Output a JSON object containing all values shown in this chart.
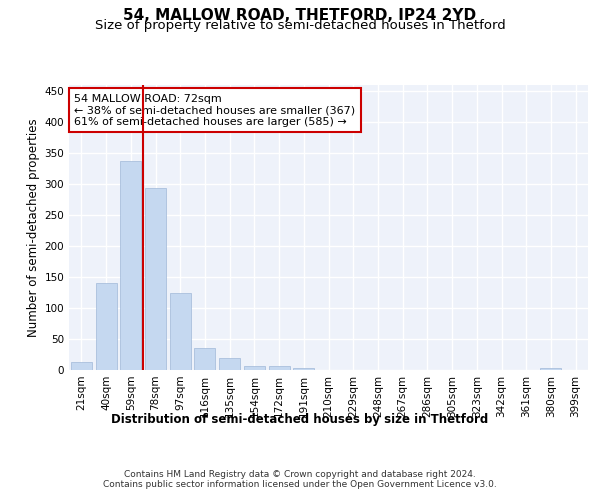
{
  "title": "54, MALLOW ROAD, THETFORD, IP24 2YD",
  "subtitle": "Size of property relative to semi-detached houses in Thetford",
  "xlabel": "Distribution of semi-detached houses by size in Thetford",
  "ylabel": "Number of semi-detached properties",
  "categories": [
    "21sqm",
    "40sqm",
    "59sqm",
    "78sqm",
    "97sqm",
    "116sqm",
    "135sqm",
    "154sqm",
    "172sqm",
    "191sqm",
    "210sqm",
    "229sqm",
    "248sqm",
    "267sqm",
    "286sqm",
    "305sqm",
    "323sqm",
    "342sqm",
    "361sqm",
    "380sqm",
    "399sqm"
  ],
  "values": [
    13,
    140,
    337,
    293,
    124,
    35,
    20,
    7,
    7,
    4,
    0,
    0,
    0,
    0,
    0,
    0,
    0,
    0,
    0,
    4,
    0
  ],
  "bar_color": "#c5d8f0",
  "bar_edge_color": "#a0b8d8",
  "vline_color": "#cc0000",
  "annotation_text": "54 MALLOW ROAD: 72sqm\n← 38% of semi-detached houses are smaller (367)\n61% of semi-detached houses are larger (585) →",
  "annotation_box_color": "#ffffff",
  "annotation_box_edge": "#cc0000",
  "ylim": [
    0,
    460
  ],
  "yticks": [
    0,
    50,
    100,
    150,
    200,
    250,
    300,
    350,
    400,
    450
  ],
  "footer": "Contains HM Land Registry data © Crown copyright and database right 2024.\nContains public sector information licensed under the Open Government Licence v3.0.",
  "bg_color": "#eef2fa",
  "grid_color": "#ffffff",
  "title_fontsize": 11,
  "subtitle_fontsize": 9.5,
  "axis_label_fontsize": 8.5,
  "tick_fontsize": 7.5,
  "annotation_fontsize": 8,
  "footer_fontsize": 6.5
}
